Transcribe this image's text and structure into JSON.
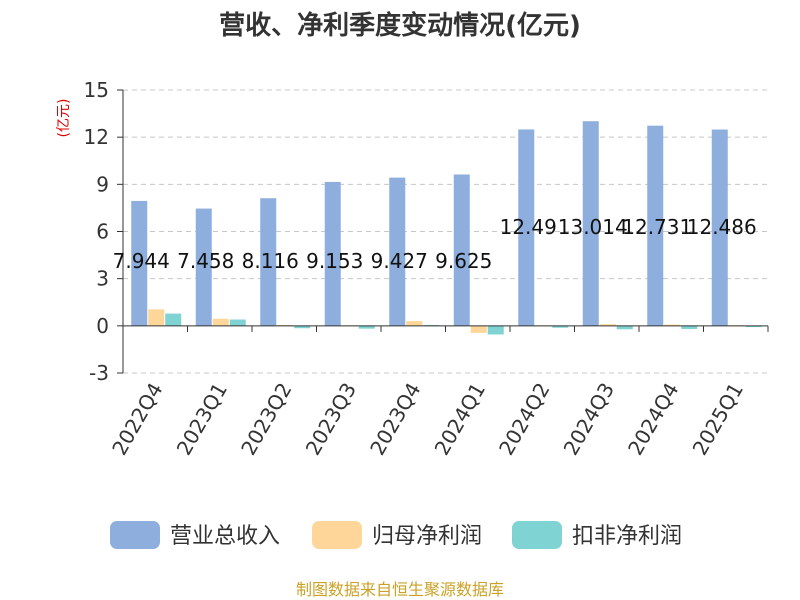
{
  "chart_data": {
    "type": "bar",
    "title": "营收、净利季度变动情况(亿元)",
    "ylabel": "(亿元)",
    "xlabel": "",
    "ylim": [
      -3,
      15
    ],
    "yticks": [
      -3,
      0,
      3,
      6,
      9,
      12,
      15
    ],
    "categories": [
      "2022Q4",
      "2023Q1",
      "2023Q2",
      "2023Q3",
      "2023Q4",
      "2024Q1",
      "2024Q2",
      "2024Q3",
      "2024Q4",
      "2025Q1"
    ],
    "series": [
      {
        "name": "营业总收入",
        "color": "#8eaedd",
        "values": [
          7.944,
          7.458,
          8.116,
          9.153,
          9.427,
          9.625,
          12.49,
          13.014,
          12.731,
          12.486
        ],
        "labels": [
          "7.944",
          "7.458",
          "8.116",
          "9.153",
          "9.427",
          "9.625",
          "12.49",
          "13.014",
          "12.731",
          "12.486"
        ]
      },
      {
        "name": "归母净利润",
        "color": "#ffd699",
        "values": [
          1.05,
          0.45,
          0.05,
          0.03,
          0.3,
          -0.45,
          0.03,
          0.1,
          0.08,
          0.04
        ]
      },
      {
        "name": "扣非净利润",
        "color": "#7fd3d3",
        "values": [
          0.78,
          0.4,
          -0.15,
          -0.18,
          0.05,
          -0.55,
          -0.12,
          -0.22,
          -0.2,
          -0.08
        ]
      }
    ],
    "grid": true,
    "legend_position": "bottom"
  },
  "source_note": "制图数据来自恒生聚源数据库"
}
